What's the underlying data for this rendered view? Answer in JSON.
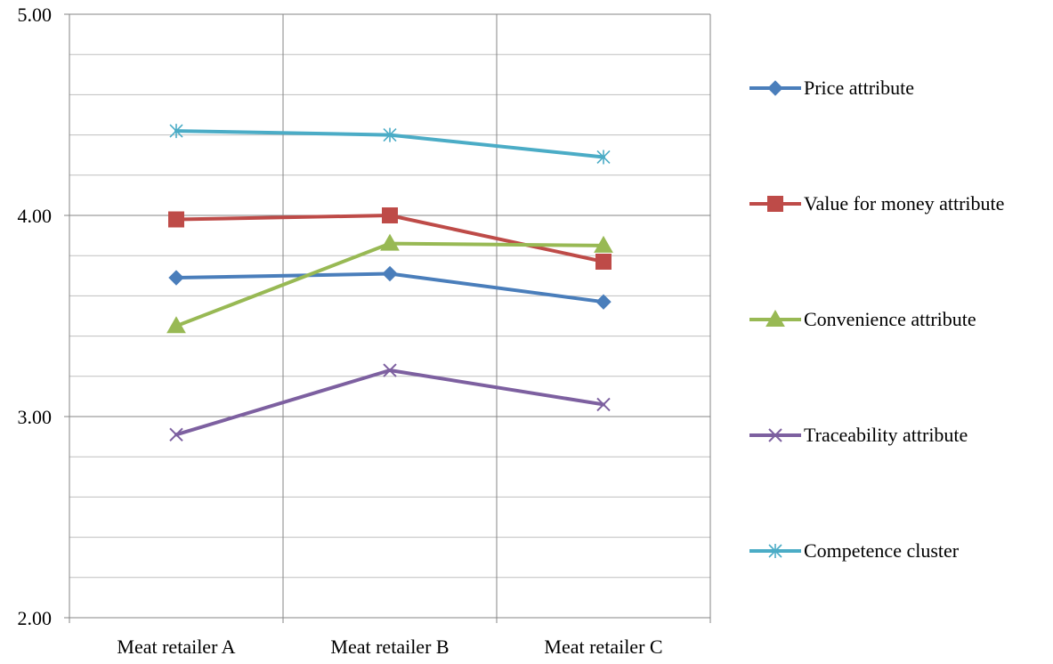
{
  "chart_data": {
    "type": "line",
    "categories": [
      "Meat retailer A",
      "Meat retailer B",
      "Meat retailer C"
    ],
    "ylim": [
      2.0,
      5.0
    ],
    "y_ticks": [
      "2.00",
      "3.00",
      "4.00",
      "5.00"
    ],
    "y_major_step": 1.0,
    "y_minor_step": 0.2,
    "grid": true,
    "legend_position": "right",
    "series": [
      {
        "name": "Price attribute",
        "values": [
          3.69,
          3.71,
          3.57
        ],
        "color": "#4a7ebb",
        "marker": "diamond-icon"
      },
      {
        "name": "Value for money attribute",
        "values": [
          3.98,
          4.0,
          3.77
        ],
        "color": "#be4b48",
        "marker": "square-icon"
      },
      {
        "name": "Convenience attribute",
        "values": [
          3.45,
          3.86,
          3.85
        ],
        "color": "#98b954",
        "marker": "triangle-icon"
      },
      {
        "name": "Traceability attribute",
        "values": [
          2.91,
          3.23,
          3.06
        ],
        "color": "#7d60a0",
        "marker": "x-icon"
      },
      {
        "name": "Competence cluster",
        "values": [
          4.42,
          4.4,
          4.29
        ],
        "color": "#4bacc6",
        "marker": "asterisk-icon"
      }
    ]
  }
}
